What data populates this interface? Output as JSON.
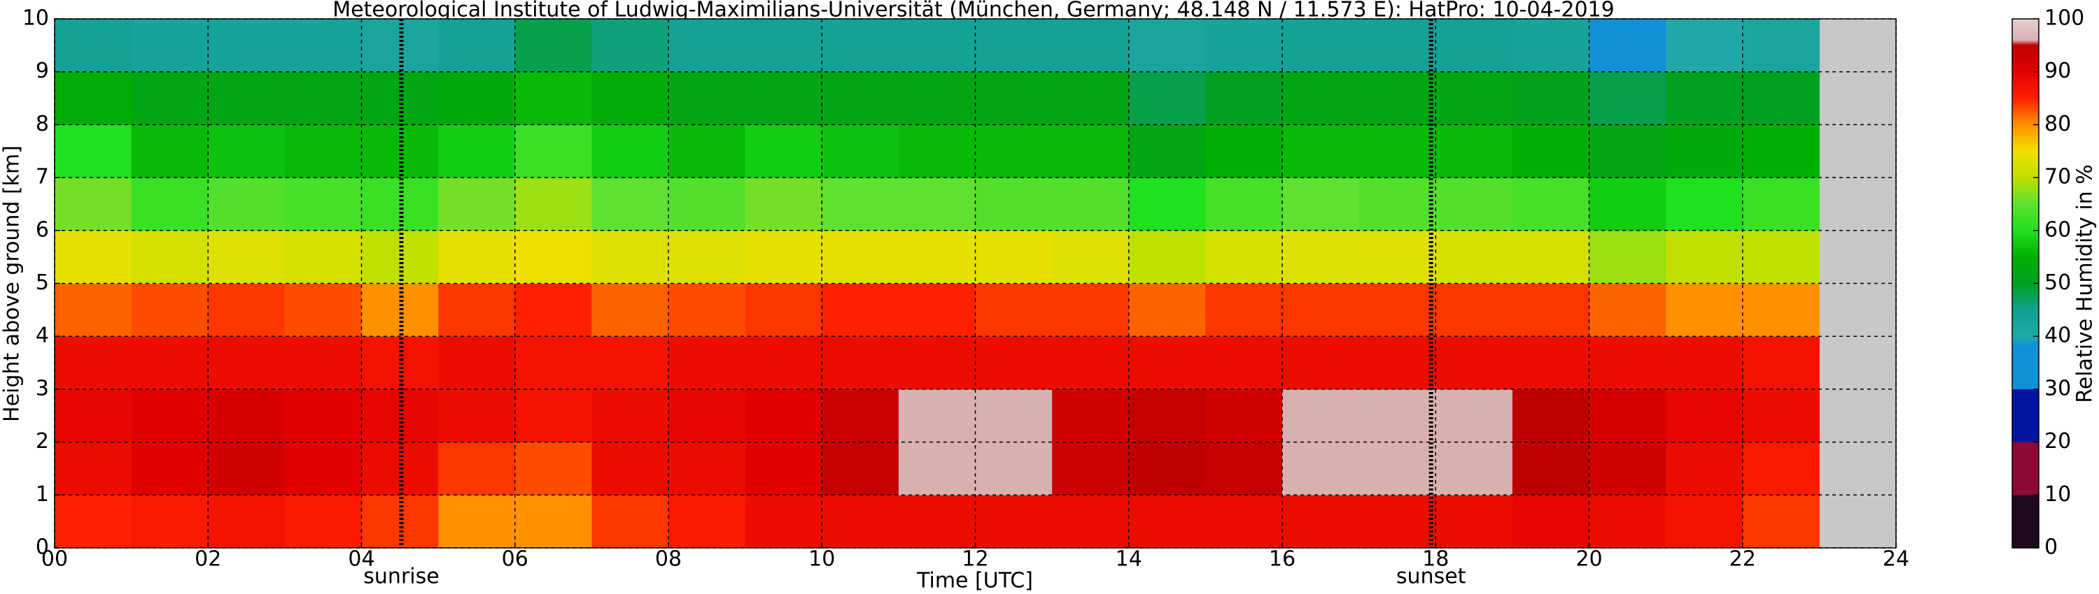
{
  "chart_data": {
    "type": "heatmap",
    "title": "Meteorological Institute of Ludwig-Maximilians-Universität (München, Germany; 48.148 N / 11.573 E):    HatPro: 10-04-2019",
    "xlabel": "Time [UTC]",
    "ylabel": "Height above ground [km]",
    "colorbar_label": "Relative Humidity in %",
    "x": [
      0.5,
      1.5,
      2.5,
      3.5,
      4.5,
      5.5,
      6.5,
      7.5,
      8.5,
      9.5,
      10.5,
      11.5,
      12.5,
      13.5,
      14.5,
      15.5,
      16.5,
      17.5,
      18.5,
      19.5,
      20.5,
      21.5,
      22.5
    ],
    "y": [
      0.5,
      1.5,
      2.5,
      3.5,
      4.5,
      5.5,
      6.5,
      7.5,
      8.5,
      9.5
    ],
    "z": [
      [
        85,
        86,
        87,
        86,
        84,
        80,
        80,
        84,
        86,
        88,
        88,
        88,
        88,
        88,
        88,
        88,
        88,
        88,
        88,
        89,
        88,
        87,
        84
      ],
      [
        88,
        90,
        92,
        90,
        88,
        84,
        83,
        88,
        88,
        90,
        94,
        96,
        96,
        93,
        95,
        94,
        96,
        96,
        96,
        95,
        92,
        88,
        86
      ],
      [
        89,
        90,
        91,
        90,
        89,
        88,
        87,
        88,
        89,
        90,
        93,
        96,
        96,
        92,
        94,
        92,
        96,
        96,
        96,
        95,
        91,
        89,
        88
      ],
      [
        88,
        88,
        88,
        88,
        87,
        88,
        87,
        87,
        88,
        88,
        88,
        88,
        88,
        88,
        88,
        88,
        88,
        88,
        88,
        88,
        88,
        88,
        87
      ],
      [
        82,
        83,
        84,
        83,
        80,
        84,
        85,
        82,
        83,
        84,
        85,
        85,
        84,
        84,
        82,
        84,
        84,
        84,
        84,
        84,
        82,
        80,
        80
      ],
      [
        74,
        72,
        73,
        72,
        70,
        74,
        75,
        73,
        73,
        74,
        74,
        74,
        74,
        73,
        70,
        72,
        73,
        73,
        72,
        72,
        68,
        70,
        70
      ],
      [
        66,
        62,
        64,
        63,
        62,
        66,
        68,
        65,
        64,
        66,
        65,
        65,
        64,
        64,
        60,
        63,
        65,
        64,
        64,
        63,
        58,
        60,
        62
      ],
      [
        60,
        56,
        57,
        56,
        56,
        58,
        62,
        58,
        56,
        58,
        57,
        56,
        56,
        56,
        52,
        55,
        56,
        56,
        56,
        55,
        52,
        53,
        55
      ],
      [
        54,
        52,
        52,
        52,
        52,
        53,
        56,
        54,
        52,
        52,
        52,
        52,
        52,
        52,
        48,
        50,
        52,
        52,
        52,
        51,
        48,
        50,
        50
      ],
      [
        44,
        43,
        43,
        43,
        42,
        44,
        48,
        46,
        44,
        44,
        44,
        44,
        44,
        44,
        42,
        43,
        44,
        44,
        44,
        43,
        38,
        40,
        42
      ]
    ],
    "xlim": [
      0,
      24
    ],
    "ylim": [
      0,
      10
    ],
    "xticks": [
      {
        "value": 0,
        "label": "00"
      },
      {
        "value": 2,
        "label": "02"
      },
      {
        "value": 4,
        "label": "04"
      },
      {
        "value": 6,
        "label": "06"
      },
      {
        "value": 8,
        "label": "08"
      },
      {
        "value": 10,
        "label": "10"
      },
      {
        "value": 12,
        "label": "12"
      },
      {
        "value": 14,
        "label": "14"
      },
      {
        "value": 16,
        "label": "16"
      },
      {
        "value": 18,
        "label": "18"
      },
      {
        "value": 20,
        "label": "20"
      },
      {
        "value": 22,
        "label": "22"
      },
      {
        "value": 24,
        "label": "24"
      }
    ],
    "yticks": [
      0,
      1,
      2,
      3,
      4,
      5,
      6,
      7,
      8,
      9,
      10
    ],
    "clim": [
      0,
      100
    ],
    "cticks": [
      0,
      10,
      20,
      30,
      40,
      50,
      60,
      70,
      80,
      90,
      100
    ],
    "colormap": [
      {
        "value": 0,
        "color": "#200a20"
      },
      {
        "value": 10,
        "color": "#200a20"
      },
      {
        "value": 10,
        "color": "#8b0a35"
      },
      {
        "value": 20,
        "color": "#8b0a35"
      },
      {
        "value": 20,
        "color": "#0014a0"
      },
      {
        "value": 30,
        "color": "#0014a0"
      },
      {
        "value": 30,
        "color": "#1090d8"
      },
      {
        "value": 38,
        "color": "#1090d8"
      },
      {
        "value": 40,
        "color": "#20a8a8"
      },
      {
        "value": 45,
        "color": "#10a090"
      },
      {
        "value": 50,
        "color": "#00a020"
      },
      {
        "value": 55,
        "color": "#00b000"
      },
      {
        "value": 60,
        "color": "#20e020"
      },
      {
        "value": 65,
        "color": "#60e030"
      },
      {
        "value": 70,
        "color": "#c0e000"
      },
      {
        "value": 75,
        "color": "#f0e000"
      },
      {
        "value": 80,
        "color": "#ff9000"
      },
      {
        "value": 85,
        "color": "#ff2000"
      },
      {
        "value": 90,
        "color": "#e00000"
      },
      {
        "value": 95,
        "color": "#c00000"
      },
      {
        "value": 96,
        "color": "#d8b0b0"
      },
      {
        "value": 100,
        "color": "#e8d0d0"
      }
    ],
    "background": "#c8c8c8",
    "grid": true,
    "annotations": [
      {
        "label": "sunrise",
        "x": 4.52
      },
      {
        "label": "sunset",
        "x": 17.94
      }
    ]
  }
}
